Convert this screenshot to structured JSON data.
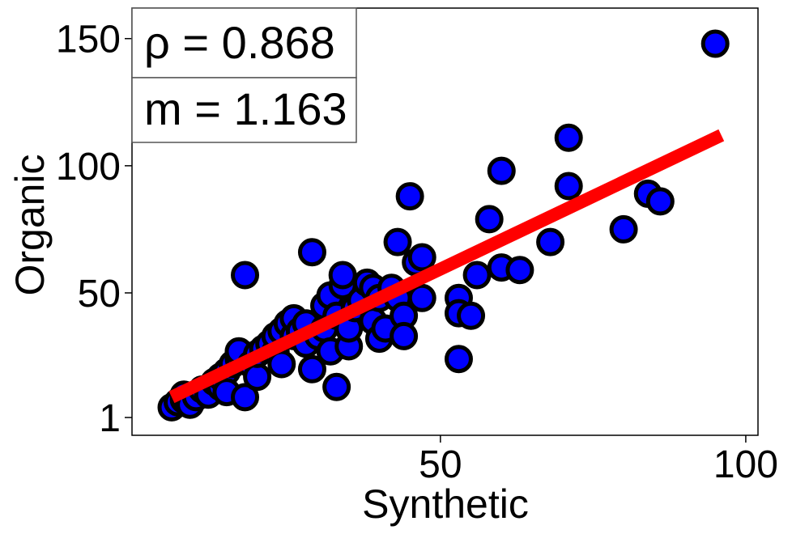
{
  "chart_data": {
    "type": "scatter",
    "xlabel": "Synthetic",
    "ylabel": "Organic",
    "x_ticks": [
      50,
      100
    ],
    "y_ticks": [
      1,
      50,
      100,
      150
    ],
    "xlim": [
      -0.5,
      102
    ],
    "ylim": [
      -6,
      162
    ],
    "colors": {
      "point_fill": "#0000ff",
      "point_edge": "#000000",
      "fit_line": "#ff0000"
    },
    "annotations": {
      "rho": "ρ = 0.868",
      "slope": "m = 1.163"
    },
    "fit_line": {
      "x": [
        6,
        96
      ],
      "y": [
        9,
        112
      ]
    },
    "points": [
      {
        "x": 6,
        "y": 5
      },
      {
        "x": 7,
        "y": 7
      },
      {
        "x": 8,
        "y": 8
      },
      {
        "x": 8,
        "y": 10
      },
      {
        "x": 9,
        "y": 6
      },
      {
        "x": 10,
        "y": 9
      },
      {
        "x": 11,
        "y": 12
      },
      {
        "x": 12,
        "y": 10
      },
      {
        "x": 13,
        "y": 15
      },
      {
        "x": 14,
        "y": 13
      },
      {
        "x": 14,
        "y": 17
      },
      {
        "x": 15,
        "y": 19
      },
      {
        "x": 15,
        "y": 11
      },
      {
        "x": 16,
        "y": 22
      },
      {
        "x": 17,
        "y": 24
      },
      {
        "x": 17,
        "y": 27
      },
      {
        "x": 18,
        "y": 9
      },
      {
        "x": 18,
        "y": 57
      },
      {
        "x": 19,
        "y": 22
      },
      {
        "x": 20,
        "y": 17
      },
      {
        "x": 20,
        "y": 26
      },
      {
        "x": 21,
        "y": 28
      },
      {
        "x": 22,
        "y": 30
      },
      {
        "x": 23,
        "y": 27
      },
      {
        "x": 23,
        "y": 33
      },
      {
        "x": 24,
        "y": 35
      },
      {
        "x": 24,
        "y": 22
      },
      {
        "x": 25,
        "y": 38
      },
      {
        "x": 26,
        "y": 33
      },
      {
        "x": 26,
        "y": 40
      },
      {
        "x": 27,
        "y": 35
      },
      {
        "x": 28,
        "y": 30
      },
      {
        "x": 28,
        "y": 38
      },
      {
        "x": 29,
        "y": 20
      },
      {
        "x": 29,
        "y": 66
      },
      {
        "x": 30,
        "y": 33
      },
      {
        "x": 31,
        "y": 36
      },
      {
        "x": 31,
        "y": 45
      },
      {
        "x": 32,
        "y": 49
      },
      {
        "x": 32,
        "y": 27
      },
      {
        "x": 33,
        "y": 13
      },
      {
        "x": 33,
        "y": 41
      },
      {
        "x": 34,
        "y": 53
      },
      {
        "x": 34,
        "y": 57
      },
      {
        "x": 35,
        "y": 29
      },
      {
        "x": 35,
        "y": 36
      },
      {
        "x": 36,
        "y": 44
      },
      {
        "x": 37,
        "y": 47
      },
      {
        "x": 38,
        "y": 54
      },
      {
        "x": 39,
        "y": 52
      },
      {
        "x": 39,
        "y": 39
      },
      {
        "x": 40,
        "y": 48
      },
      {
        "x": 40,
        "y": 32
      },
      {
        "x": 41,
        "y": 36
      },
      {
        "x": 42,
        "y": 52
      },
      {
        "x": 43,
        "y": 48
      },
      {
        "x": 43,
        "y": 70
      },
      {
        "x": 44,
        "y": 41
      },
      {
        "x": 44,
        "y": 33
      },
      {
        "x": 45,
        "y": 88
      },
      {
        "x": 46,
        "y": 62
      },
      {
        "x": 47,
        "y": 64
      },
      {
        "x": 47,
        "y": 48
      },
      {
        "x": 53,
        "y": 24
      },
      {
        "x": 53,
        "y": 48
      },
      {
        "x": 53,
        "y": 42
      },
      {
        "x": 55,
        "y": 41
      },
      {
        "x": 56,
        "y": 57
      },
      {
        "x": 58,
        "y": 79
      },
      {
        "x": 60,
        "y": 98
      },
      {
        "x": 60,
        "y": 60
      },
      {
        "x": 63,
        "y": 59
      },
      {
        "x": 68,
        "y": 70
      },
      {
        "x": 71,
        "y": 111
      },
      {
        "x": 71,
        "y": 92
      },
      {
        "x": 80,
        "y": 75
      },
      {
        "x": 84,
        "y": 89
      },
      {
        "x": 86,
        "y": 86
      },
      {
        "x": 95,
        "y": 148
      }
    ]
  }
}
